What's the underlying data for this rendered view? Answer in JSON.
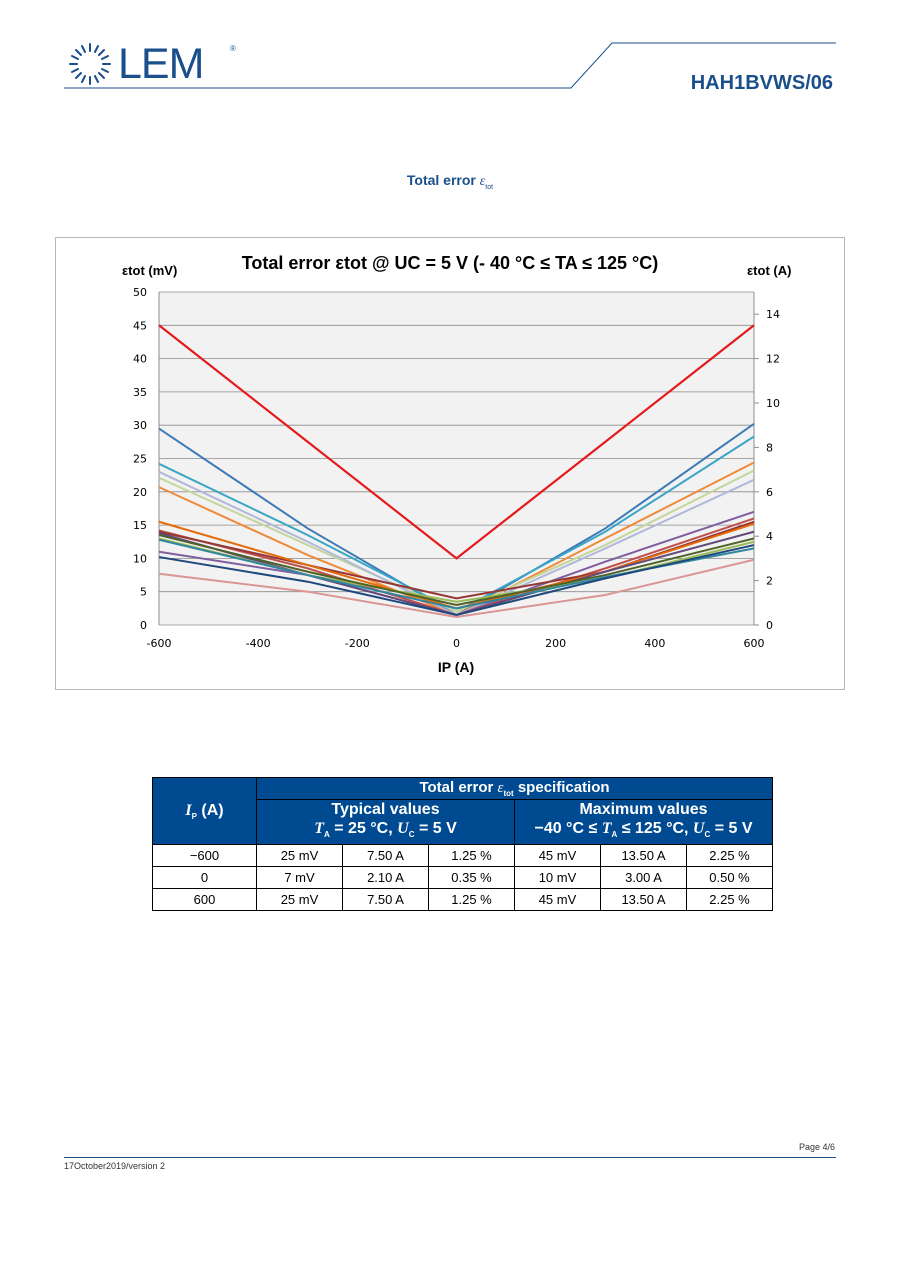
{
  "header": {
    "logo_text": "LEM",
    "logo_reg": "®",
    "doc_title": "HAH1BVWS/06"
  },
  "section": {
    "title": "Total error",
    "symbol": "ε",
    "symbol_sub": "tot"
  },
  "chart_data": {
    "type": "line",
    "title": "Total error εtot @ UC = 5 V (- 40 °C ≤ TA ≤ 125 °C)",
    "ylabel_left": "εtot (mV)",
    "ylabel_right": "εtot (A)",
    "xlabel": "IP (A)",
    "x": [
      -600,
      -300,
      0,
      300,
      600
    ],
    "xticks": [
      -600,
      -400,
      -200,
      0,
      200,
      400,
      600
    ],
    "ylim_left": [
      0,
      50
    ],
    "yticks_left": [
      0,
      5,
      10,
      15,
      20,
      25,
      30,
      35,
      40,
      45,
      50
    ],
    "ylim_right": [
      0,
      15
    ],
    "yticks_right": [
      0,
      2,
      4,
      6,
      8,
      10,
      12,
      14
    ],
    "grid": true,
    "series": [
      {
        "color": "#e41a1c",
        "values": [
          45,
          27.5,
          10,
          27.5,
          45
        ],
        "width": 2.2
      },
      {
        "color": "#3e7bb6",
        "values": [
          29.5,
          14.5,
          1.5,
          14.5,
          30.2
        ]
      },
      {
        "color": "#3aa5c6",
        "values": [
          24.2,
          13.5,
          2,
          14,
          28.3
        ]
      },
      {
        "color": "#ee8a3a",
        "values": [
          20.7,
          10.5,
          1.5,
          13,
          24.4
        ]
      },
      {
        "color": "#c3d69b",
        "values": [
          22.1,
          12,
          2,
          12,
          23.2
        ]
      },
      {
        "color": "#b0b8d9",
        "values": [
          23,
          12.5,
          1.5,
          11.5,
          21.8
        ]
      },
      {
        "color": "#7f5fa0",
        "values": [
          11,
          7.5,
          1.5,
          9.5,
          17
        ]
      },
      {
        "color": "#c0504d",
        "values": [
          14.2,
          8.5,
          1.5,
          8.5,
          16
        ]
      },
      {
        "color": "#953735",
        "values": [
          14,
          9,
          4,
          8,
          15.5
        ]
      },
      {
        "color": "#e46c0a",
        "values": [
          15.5,
          9,
          2.5,
          8,
          15.2
        ]
      },
      {
        "color": "#604a7b",
        "values": [
          13.8,
          7.5,
          1.5,
          8,
          14
        ]
      },
      {
        "color": "#9bbb59",
        "values": [
          13,
          7.5,
          3.5,
          7,
          12.5
        ]
      },
      {
        "color": "#4f6228",
        "values": [
          13.5,
          8,
          3,
          7.5,
          13
        ]
      },
      {
        "color": "#31859c",
        "values": [
          12.8,
          7.5,
          2.5,
          7.2,
          11.5
        ]
      },
      {
        "color": "#1f497d",
        "values": [
          10.2,
          6.5,
          1.5,
          7,
          12
        ]
      },
      {
        "color": "#d99694",
        "values": [
          7.7,
          5,
          1.2,
          4.5,
          9.8
        ]
      }
    ]
  },
  "table": {
    "ip_label": "I",
    "ip_sub": "P",
    "ip_unit": "(A)",
    "spec_title": "Total error",
    "spec_sym": "ε",
    "spec_sym_sub": "tot",
    "spec_title_tail": "specification",
    "typ_title": "Typical values",
    "typ_cond_a": "T",
    "typ_cond_a_sub": "A",
    "typ_cond_b": "= 25 °C,",
    "typ_cond_c": "U",
    "typ_cond_c_sub": "C",
    "typ_cond_d": "= 5 V",
    "max_title": "Maximum values",
    "max_cond_a": "−40 °C ≤",
    "max_cond_b": "T",
    "max_cond_b_sub": "A",
    "max_cond_c": "≤ 125 °C,",
    "max_cond_d": "U",
    "max_cond_d_sub": "C",
    "max_cond_e": "= 5 V",
    "rows": [
      [
        "−600",
        "25 mV",
        "7.50 A",
        "1.25 %",
        "45 mV",
        "13.50 A",
        "2.25 %"
      ],
      [
        "0",
        "7 mV",
        "2.10 A",
        "0.35 %",
        "10 mV",
        "3.00 A",
        "0.50 %"
      ],
      [
        "600",
        "25 mV",
        "7.50 A",
        "1.25 %",
        "45 mV",
        "13.50 A",
        "2.25 %"
      ]
    ]
  },
  "footer": {
    "page": "Page 4/6",
    "version": "17October2019/version 2"
  }
}
